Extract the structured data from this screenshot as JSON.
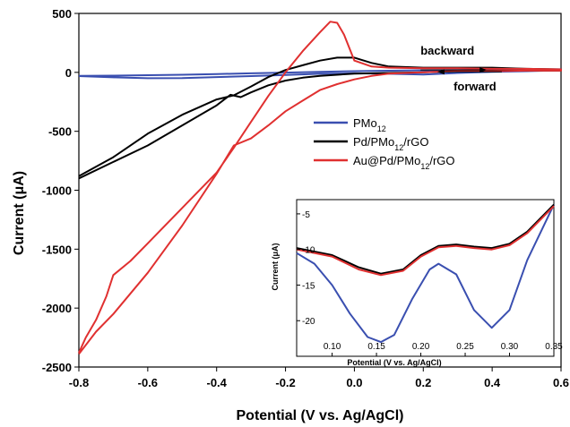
{
  "chart_data": [
    {
      "type": "line",
      "title": "",
      "xlabel": "Potential (V vs. Ag/AgCl)",
      "ylabel": "Current (μA)",
      "xlim": [
        -0.8,
        0.6
      ],
      "ylim": [
        -2500,
        500
      ],
      "xticks": [
        "-0.8",
        "-0.6",
        "-0.4",
        "-0.2",
        "0.0",
        "0.2",
        "0.4",
        "0.6"
      ],
      "yticks": [
        "500",
        "0",
        "-500",
        "-1000",
        "-1500",
        "-2000",
        "-2500"
      ],
      "grid": false,
      "legend_placement": "center-right",
      "annotations": [
        {
          "text": "backward",
          "arrow": "right",
          "x": 0.27,
          "y": 150
        },
        {
          "text": "forward",
          "arrow": "left",
          "x": 0.35,
          "y": -155
        }
      ],
      "series": [
        {
          "name": "PMo12",
          "name_base": "PMo",
          "name_sub": "12",
          "color": "#3a4fb0",
          "x": [
            -0.8,
            -0.7,
            -0.6,
            -0.5,
            -0.4,
            -0.3,
            -0.2,
            -0.1,
            0.0,
            0.1,
            0.2,
            0.3,
            0.4,
            0.5,
            0.6,
            0.6,
            0.5,
            0.4,
            0.3,
            0.2,
            0.1,
            0.0,
            -0.1,
            -0.2,
            -0.3,
            -0.4,
            -0.5,
            -0.6,
            -0.7,
            -0.8
          ],
          "y": [
            -30,
            -28,
            -24,
            -20,
            -14,
            -8,
            -2,
            4,
            10,
            14,
            18,
            20,
            22,
            24,
            26,
            18,
            10,
            4,
            -5,
            -18,
            -12,
            -8,
            -12,
            -22,
            -32,
            -40,
            -48,
            -50,
            -42,
            -32
          ]
        },
        {
          "name": "Pd/PMo12/rGO",
          "name_base": "Pd/PMo",
          "name_sub": "12",
          "name_tail": "/rGO",
          "color": "#000000",
          "x": [
            -0.8,
            -0.7,
            -0.6,
            -0.5,
            -0.4,
            -0.35,
            -0.3,
            -0.25,
            -0.2,
            -0.15,
            -0.1,
            -0.05,
            0.0,
            0.05,
            0.1,
            0.2,
            0.3,
            0.4,
            0.5,
            0.6,
            0.6,
            0.5,
            0.4,
            0.3,
            0.2,
            0.1,
            0.0,
            -0.05,
            -0.1,
            -0.15,
            -0.2,
            -0.25,
            -0.3,
            -0.33,
            -0.36,
            -0.4,
            -0.5,
            -0.6,
            -0.7,
            -0.8
          ],
          "y": [
            -880,
            -720,
            -520,
            -360,
            -230,
            -195,
            -120,
            -40,
            20,
            60,
            100,
            125,
            125,
            80,
            50,
            40,
            40,
            40,
            30,
            25,
            15,
            15,
            15,
            10,
            0,
            -5,
            -10,
            -20,
            -30,
            -45,
            -70,
            -110,
            -170,
            -210,
            -190,
            -280,
            -450,
            -620,
            -760,
            -900
          ]
        },
        {
          "name": "Au@Pd/PMo12/rGO",
          "name_base": "Au@Pd/PMo",
          "name_sub": "12",
          "name_tail": "/rGO",
          "color": "#e03030",
          "x": [
            -0.8,
            -0.78,
            -0.75,
            -0.72,
            -0.7,
            -0.65,
            -0.6,
            -0.5,
            -0.4,
            -0.35,
            -0.3,
            -0.25,
            -0.2,
            -0.15,
            -0.1,
            -0.07,
            -0.05,
            -0.03,
            0.0,
            0.05,
            0.1,
            0.2,
            0.3,
            0.4,
            0.5,
            0.6,
            0.6,
            0.5,
            0.4,
            0.3,
            0.2,
            0.1,
            0.05,
            0.0,
            -0.05,
            -0.1,
            -0.15,
            -0.2,
            -0.25,
            -0.3,
            -0.35,
            -0.4,
            -0.5,
            -0.6,
            -0.7,
            -0.75,
            -0.8
          ],
          "y": [
            -2380,
            -2250,
            -2100,
            -1900,
            -1720,
            -1600,
            -1450,
            -1150,
            -850,
            -640,
            -420,
            -200,
            0,
            180,
            340,
            430,
            420,
            320,
            100,
            50,
            40,
            35,
            35,
            30,
            30,
            25,
            15,
            15,
            10,
            10,
            0,
            -10,
            -30,
            -60,
            -100,
            -150,
            -240,
            -330,
            -450,
            -560,
            -620,
            -860,
            -1300,
            -1700,
            -2050,
            -2200,
            -2390
          ]
        }
      ]
    },
    {
      "type": "line",
      "title": "",
      "xlabel": "Potential (V vs. Ag/AgCl)",
      "ylabel": "Current (μA)",
      "xlim": [
        0.06,
        0.35
      ],
      "ylim": [
        -25,
        -3
      ],
      "xticks": [
        "0.10",
        "0.15",
        "0.20",
        "0.25",
        "0.30",
        "0.35"
      ],
      "yticks": [
        "-5",
        "-10",
        "-15",
        "-20"
      ],
      "grid": false,
      "series": [
        {
          "color": "#3a4fb0",
          "x": [
            0.06,
            0.08,
            0.1,
            0.12,
            0.14,
            0.155,
            0.17,
            0.19,
            0.21,
            0.22,
            0.24,
            0.26,
            0.28,
            0.3,
            0.32,
            0.35
          ],
          "y": [
            -10.5,
            -12.0,
            -15.0,
            -19.0,
            -22.3,
            -23.0,
            -22.0,
            -17.0,
            -12.8,
            -12.0,
            -13.5,
            -18.5,
            -21.0,
            -18.5,
            -11.5,
            -3.7
          ]
        },
        {
          "color": "#000000",
          "x": [
            0.06,
            0.1,
            0.13,
            0.155,
            0.18,
            0.2,
            0.22,
            0.24,
            0.26,
            0.28,
            0.3,
            0.32,
            0.35
          ],
          "y": [
            -9.8,
            -10.8,
            -12.5,
            -13.4,
            -12.8,
            -10.8,
            -9.5,
            -9.3,
            -9.6,
            -9.8,
            -9.2,
            -7.5,
            -3.7
          ]
        },
        {
          "color": "#e03030",
          "x": [
            0.06,
            0.1,
            0.13,
            0.155,
            0.18,
            0.2,
            0.22,
            0.24,
            0.26,
            0.28,
            0.3,
            0.32,
            0.35
          ],
          "y": [
            -10.0,
            -11.0,
            -12.8,
            -13.6,
            -13.0,
            -11.0,
            -9.7,
            -9.5,
            -9.8,
            -10.0,
            -9.4,
            -7.7,
            -3.9
          ]
        }
      ]
    }
  ]
}
